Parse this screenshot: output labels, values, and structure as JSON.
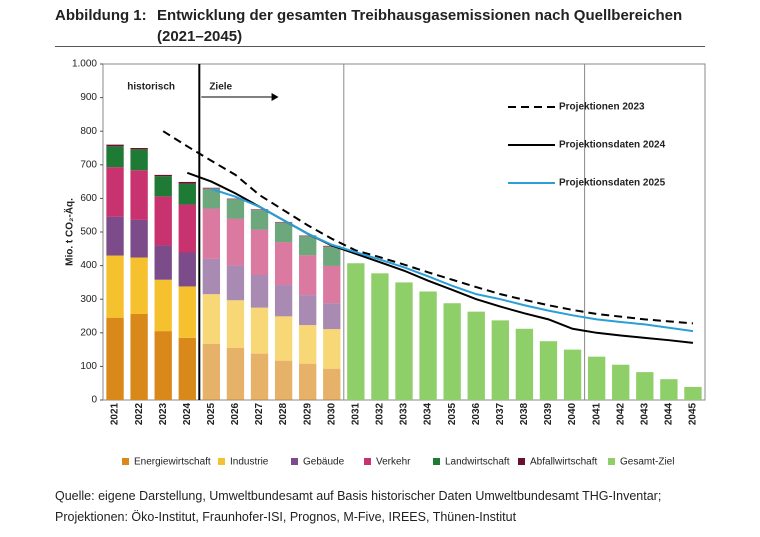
{
  "chart_data": {
    "type": "stacked_bar_line",
    "figure_label": "Abbildung 1:",
    "title": "Entwicklung der gesamten Treibhausgasemissionen nach Quellbereichen (2021–2045)",
    "ylabel": "Mio. t CO₂-Äq.",
    "annotations": [
      "historisch",
      "Ziele"
    ],
    "source": [
      "Quelle: eigene Darstellung, Umweltbundesamt auf Basis historischer Daten Umweltbundesamt THG-Inventar;",
      "Projektionen: Öko-Institut, Fraunhofer-ISI, Prognos, M-Five, IREES, Thünen-Institut"
    ],
    "categories": [
      "2021",
      "2022",
      "2023",
      "2024",
      "2025",
      "2026",
      "2027",
      "2028",
      "2029",
      "2030",
      "2031",
      "2032",
      "2033",
      "2034",
      "2035",
      "2036",
      "2037",
      "2038",
      "2039",
      "2040",
      "2041",
      "2042",
      "2043",
      "2044",
      "2045"
    ],
    "ylim": [
      0,
      1000
    ],
    "yticks": [
      0,
      100,
      200,
      300,
      400,
      500,
      600,
      700,
      800,
      900,
      {
        "value": 1000,
        "label": "1.000"
      }
    ],
    "series": [
      {
        "name": "Energiewirtschaft",
        "color": "#d9891a",
        "values": [
          245,
          256,
          205,
          185,
          167,
          155,
          138,
          117,
          108,
          93,
          null,
          null,
          null,
          null,
          null,
          null,
          null,
          null,
          null,
          null,
          null,
          null,
          null,
          null,
          null
        ]
      },
      {
        "name": "Industrie",
        "color": "#f5c12e",
        "values": [
          185,
          168,
          153,
          153,
          148,
          142,
          137,
          132,
          115,
          118,
          null,
          null,
          null,
          null,
          null,
          null,
          null,
          null,
          null,
          null,
          null,
          null,
          null,
          null,
          null
        ]
      },
      {
        "name": "Gebäude",
        "color": "#7b4b8a",
        "values": [
          115,
          112,
          102,
          101,
          105,
          103,
          97,
          93,
          89,
          77,
          null,
          null,
          null,
          null,
          null,
          null,
          null,
          null,
          null,
          null,
          null,
          null,
          null,
          null,
          null
        ]
      },
      {
        "name": "Verkehr",
        "color": "#c7326f",
        "values": [
          148,
          148,
          146,
          143,
          150,
          140,
          135,
          128,
          119,
          111,
          null,
          null,
          null,
          null,
          null,
          null,
          null,
          null,
          null,
          null,
          null,
          null,
          null,
          null,
          null
        ]
      },
      {
        "name": "Landwirtschaft",
        "color": "#1e7a35",
        "values": [
          62,
          62,
          60,
          62,
          58,
          57,
          58,
          57,
          56,
          56,
          null,
          null,
          null,
          null,
          null,
          null,
          null,
          null,
          null,
          null,
          null,
          null,
          null,
          null,
          null
        ]
      },
      {
        "name": "Abfallwirtschaft",
        "color": "#6b1030",
        "values": [
          5,
          4,
          4,
          5,
          4,
          3,
          3,
          3,
          3,
          4,
          null,
          null,
          null,
          null,
          null,
          null,
          null,
          null,
          null,
          null,
          null,
          null,
          null,
          null,
          null
        ]
      },
      {
        "name": "Gesamt-Ziel",
        "color": "#8fcf6a",
        "values": [
          null,
          null,
          null,
          null,
          null,
          null,
          null,
          null,
          null,
          null,
          407,
          377,
          350,
          323,
          288,
          263,
          237,
          212,
          175,
          150,
          129,
          105,
          83,
          62,
          39
        ]
      }
    ],
    "lines": [
      {
        "name": "Projektionen 2023",
        "color": "#000000",
        "style": "dashed",
        "values": [
          null,
          null,
          800,
          755,
          712,
          670,
          610,
          565,
          520,
          480,
          445,
          425,
          403,
          380,
          358,
          336,
          315,
          298,
          282,
          268,
          256,
          248,
          240,
          234,
          228
        ]
      },
      {
        "name": "Projektionsdaten 2024",
        "color": "#000000",
        "style": "solid",
        "values": [
          null,
          null,
          null,
          676,
          650,
          615,
          575,
          535,
          495,
          460,
          435,
          410,
          385,
          355,
          328,
          300,
          278,
          258,
          240,
          212,
          200,
          192,
          185,
          178,
          170
        ]
      },
      {
        "name": "Projektionsdaten 2025",
        "color": "#2a9fd6",
        "style": "solid",
        "values": [
          null,
          null,
          null,
          null,
          628,
          605,
          575,
          535,
          495,
          462,
          440,
          418,
          395,
          368,
          340,
          315,
          300,
          282,
          266,
          252,
          240,
          232,
          225,
          215,
          205
        ]
      }
    ]
  }
}
